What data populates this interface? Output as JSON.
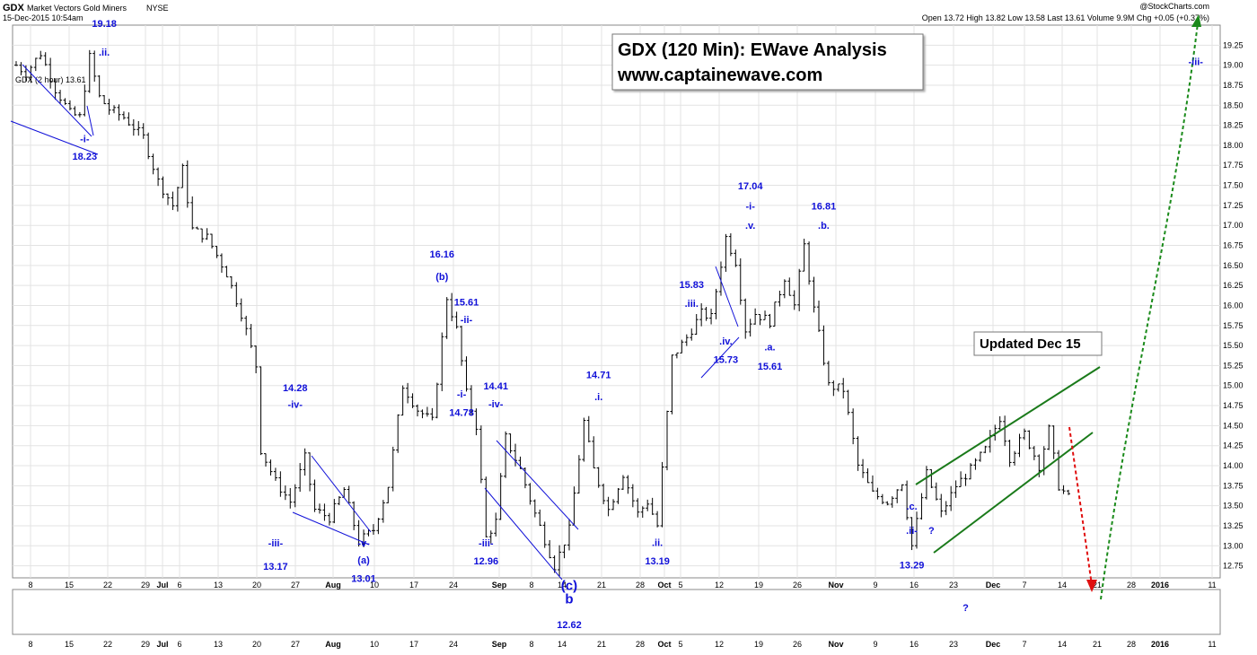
{
  "header": {
    "symbol": "GDX",
    "name": "Market Vectors Gold Miners",
    "exchange": "NYSE",
    "datetime": "15-Dec-2015 10:54am",
    "brand": "@StockCharts.com",
    "quote": "Open 13.72   High 13.82   Low 13.58   Last 13.61   Volume 9.9M   Chg +0.05 (+0.37%)",
    "legend": "GDX (2 hour) 13.61"
  },
  "title_box": {
    "line1": "GDX (120 Min): EWave Analysis",
    "line2": "www.captainewave.com"
  },
  "updated_box": "Updated Dec 15",
  "chart_data": {
    "type": "bar",
    "subtype": "OHLC",
    "interval": "2 hour",
    "ylim": [
      12.6,
      19.5
    ],
    "y_ticks": [
      12.75,
      13.0,
      13.25,
      13.5,
      13.75,
      14.0,
      14.25,
      14.5,
      14.75,
      15.0,
      15.25,
      15.5,
      15.75,
      16.0,
      16.25,
      16.5,
      16.75,
      17.0,
      17.25,
      17.5,
      17.75,
      18.0,
      18.25,
      18.5,
      18.75,
      19.0,
      19.25
    ],
    "x_ticks": [
      "8",
      "15",
      "22",
      "29",
      "Jul",
      "6",
      "13",
      "20",
      "27",
      "Aug",
      "10",
      "17",
      "24",
      "Sep",
      "8",
      "14",
      "21",
      "28",
      "Oct",
      "5",
      "12",
      "19",
      "26",
      "Nov",
      "9",
      "16",
      "23",
      "Dec",
      "7",
      "14",
      "21",
      "28",
      "2016",
      "11"
    ],
    "price_path": [
      [
        0,
        19.0
      ],
      [
        2,
        18.9
      ],
      [
        5,
        19.15
      ],
      [
        8,
        18.7
      ],
      [
        11,
        18.4
      ],
      [
        13,
        18.35
      ],
      [
        15,
        19.1
      ],
      [
        17,
        18.6
      ],
      [
        19,
        18.45
      ],
      [
        22,
        18.35
      ],
      [
        26,
        18.1
      ],
      [
        29,
        17.55
      ],
      [
        32,
        17.25
      ],
      [
        34,
        17.7
      ],
      [
        36,
        16.95
      ],
      [
        39,
        16.85
      ],
      [
        43,
        16.4
      ],
      [
        46,
        15.9
      ],
      [
        49,
        15.25
      ],
      [
        50,
        14.2
      ],
      [
        53,
        13.8
      ],
      [
        56,
        13.55
      ],
      [
        59,
        14.1
      ],
      [
        61,
        13.45
      ],
      [
        64,
        13.35
      ],
      [
        67,
        13.7
      ],
      [
        70,
        13.05
      ],
      [
        73,
        13.2
      ],
      [
        76,
        13.75
      ],
      [
        79,
        15.0
      ],
      [
        82,
        14.7
      ],
      [
        85,
        14.55
      ],
      [
        88,
        16.1
      ],
      [
        90,
        15.7
      ],
      [
        92,
        14.9
      ],
      [
        94,
        14.5
      ],
      [
        96,
        13.1
      ],
      [
        98,
        13.3
      ],
      [
        100,
        14.35
      ],
      [
        103,
        13.95
      ],
      [
        106,
        13.4
      ],
      [
        110,
        12.75
      ],
      [
        113,
        13.2
      ],
      [
        116,
        14.55
      ],
      [
        118,
        13.95
      ],
      [
        121,
        13.45
      ],
      [
        124,
        13.9
      ],
      [
        127,
        13.4
      ],
      [
        129,
        13.55
      ],
      [
        131,
        13.25
      ],
      [
        134,
        15.35
      ],
      [
        137,
        15.6
      ],
      [
        140,
        15.9
      ],
      [
        142,
        15.85
      ],
      [
        145,
        16.85
      ],
      [
        147,
        16.55
      ],
      [
        149,
        15.7
      ],
      [
        151,
        15.9
      ],
      [
        154,
        15.8
      ],
      [
        157,
        16.35
      ],
      [
        159,
        16.0
      ],
      [
        161,
        16.75
      ],
      [
        163,
        15.95
      ],
      [
        166,
        15.0
      ],
      [
        169,
        14.95
      ],
      [
        172,
        14.0
      ],
      [
        175,
        13.65
      ],
      [
        178,
        13.55
      ],
      [
        181,
        13.8
      ],
      [
        183,
        13.0
      ],
      [
        186,
        13.9
      ],
      [
        189,
        13.4
      ],
      [
        192,
        13.75
      ],
      [
        195,
        13.95
      ],
      [
        198,
        14.2
      ],
      [
        201,
        14.6
      ],
      [
        203,
        14.1
      ],
      [
        206,
        14.4
      ],
      [
        209,
        14.0
      ],
      [
        211,
        14.45
      ],
      [
        213,
        13.75
      ],
      [
        215,
        13.6
      ]
    ],
    "wave_labels": [
      {
        "text": "19.18",
        "x": 18,
        "y": 19.48
      },
      {
        "text": ".ii.",
        "x": 18,
        "y": 19.12
      },
      {
        "text": "-i-",
        "x": 14,
        "y": 18.04
      },
      {
        "text": "18.23",
        "x": 14,
        "y": 17.82
      },
      {
        "text": "14.28",
        "x": 57,
        "y": 14.93
      },
      {
        "text": "-iv-",
        "x": 57,
        "y": 14.72
      },
      {
        "text": "-iii-",
        "x": 53,
        "y": 12.99
      },
      {
        "text": "13.17",
        "x": 53,
        "y": 12.7
      },
      {
        "text": "-v-",
        "x": 71,
        "y": 12.99
      },
      {
        "text": "(a)",
        "x": 71,
        "y": 12.78
      },
      {
        "text": "13.01",
        "x": 71,
        "y": 12.55
      },
      {
        "text": "16.16",
        "x": 87,
        "y": 16.6
      },
      {
        "text": "(b)",
        "x": 87,
        "y": 16.32
      },
      {
        "text": "15.61",
        "x": 92,
        "y": 16.0
      },
      {
        "text": "-ii-",
        "x": 92,
        "y": 15.78
      },
      {
        "text": "-i-",
        "x": 91,
        "y": 14.85
      },
      {
        "text": "14.78",
        "x": 91,
        "y": 14.62
      },
      {
        "text": "14.41",
        "x": 98,
        "y": 14.95
      },
      {
        "text": "-iv-",
        "x": 98,
        "y": 14.73
      },
      {
        "text": "-iii-",
        "x": 96,
        "y": 12.99
      },
      {
        "text": "12.96",
        "x": 96,
        "y": 12.77
      },
      {
        "text": "14.71",
        "x": 119,
        "y": 15.09
      },
      {
        "text": ".i.",
        "x": 119,
        "y": 14.82
      },
      {
        "text": ".ii.",
        "x": 131,
        "y": 13.0
      },
      {
        "text": "13.19",
        "x": 131,
        "y": 12.77
      },
      {
        "text": "15.83",
        "x": 138,
        "y": 16.22
      },
      {
        "text": ".iii.",
        "x": 138,
        "y": 15.98
      },
      {
        "text": ".iv.",
        "x": 145,
        "y": 15.51
      },
      {
        "text": "15.73",
        "x": 145,
        "y": 15.28
      },
      {
        "text": "17.04",
        "x": 150,
        "y": 17.45
      },
      {
        "text": "-i-",
        "x": 150,
        "y": 17.2
      },
      {
        "text": ".v.",
        "x": 150,
        "y": 16.96
      },
      {
        "text": ".a.",
        "x": 154,
        "y": 15.44
      },
      {
        "text": "15.61",
        "x": 154,
        "y": 15.2
      },
      {
        "text": "16.81",
        "x": 165,
        "y": 17.2
      },
      {
        "text": ".b.",
        "x": 165,
        "y": 16.96
      },
      {
        "text": ".c.",
        "x": 183,
        "y": 13.45
      },
      {
        "text": ".ii-",
        "x": 183,
        "y": 13.15
      },
      {
        "text": "?",
        "x": 187,
        "y": 13.15
      },
      {
        "text": "13.29",
        "x": 183,
        "y": 12.72
      },
      {
        "text": "-iii-",
        "x": 241,
        "y": 19.0
      }
    ],
    "wave_big_labels": [
      {
        "text": "(c)",
        "x": 113,
        "y": 12.45
      },
      {
        "text": "b",
        "x": 113,
        "y": 12.28
      }
    ],
    "lower_labels": [
      "12.62",
      "?"
    ],
    "wave_lower_label_x": [
      113,
      194
    ]
  }
}
